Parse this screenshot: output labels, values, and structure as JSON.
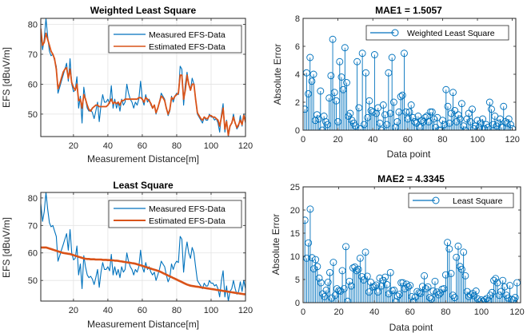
{
  "chart_data": [
    {
      "id": "wls_fit",
      "type": "line",
      "title": "Weighted Least Square",
      "xlabel": "Measurement Distance[m]",
      "ylabel": "EFS [dBuV/m]",
      "xlim": [
        1,
        120
      ],
      "ylim": [
        42.5,
        82
      ],
      "xticks": [
        20,
        40,
        60,
        80,
        100,
        120
      ],
      "yticks": [
        50,
        60,
        70,
        80
      ],
      "grid": true,
      "legend_position": "top-right",
      "series": [
        {
          "name": "Measured EFS-Data",
          "color": "#0072BD",
          "ref": "measured"
        },
        {
          "name": "Estimated EFS-Data",
          "color": "#D95319",
          "ref": "wls_estimate"
        }
      ]
    },
    {
      "id": "wls_err",
      "type": "stem",
      "title": "MAE1 = 1.5057",
      "xlabel": "Data point",
      "ylabel": "Absolute Error",
      "xlim": [
        0,
        122
      ],
      "ylim": [
        0,
        8
      ],
      "xticks": [
        0,
        20,
        40,
        60,
        80,
        100,
        120
      ],
      "yticks": [
        0,
        2,
        4,
        6,
        8
      ],
      "grid": false,
      "legend_position": "top-right",
      "series": [
        {
          "name": "Weighted Least Square",
          "color": "#0072BD",
          "ref": "wls_error"
        }
      ]
    },
    {
      "id": "ls_fit",
      "type": "line",
      "title": "Least Square",
      "xlabel": "Measurement Distance[m]",
      "ylabel": "EFS [dBuV/m]",
      "xlim": [
        1,
        120
      ],
      "ylim": [
        42.5,
        82
      ],
      "xticks": [
        20,
        40,
        60,
        80,
        100,
        120
      ],
      "yticks": [
        50,
        60,
        70,
        80
      ],
      "grid": true,
      "legend_position": "top-right",
      "series": [
        {
          "name": "Measured EFS-Data",
          "color": "#0072BD",
          "ref": "measured"
        },
        {
          "name": "Estimated EFS-Data",
          "color": "#D95319",
          "ref": "ls_estimate"
        }
      ]
    },
    {
      "id": "ls_err",
      "type": "stem",
      "title": "MAE2 = 4.3345",
      "xlabel": "Data point",
      "ylabel": "Absolute Error",
      "xlim": [
        0,
        122
      ],
      "ylim": [
        0,
        25
      ],
      "xticks": [
        0,
        20,
        40,
        60,
        80,
        100,
        120
      ],
      "yticks": [
        0,
        5,
        10,
        15,
        20,
        25
      ],
      "grid": false,
      "legend_position": "top-right",
      "series": [
        {
          "name": "Least Square",
          "color": "#0072BD",
          "ref": "ls_error"
        }
      ]
    }
  ],
  "series_values": {
    "x": [
      1,
      2,
      3,
      4,
      5,
      6,
      7,
      8,
      9,
      10,
      11,
      12,
      13,
      14,
      15,
      16,
      17,
      18,
      19,
      20,
      21,
      22,
      23,
      24,
      25,
      26,
      27,
      28,
      29,
      30,
      31,
      32,
      33,
      34,
      35,
      36,
      37,
      38,
      39,
      40,
      41,
      42,
      43,
      44,
      45,
      46,
      47,
      48,
      49,
      50,
      51,
      52,
      53,
      54,
      55,
      56,
      57,
      58,
      59,
      60,
      61,
      62,
      63,
      64,
      65,
      66,
      67,
      68,
      69,
      70,
      71,
      72,
      73,
      74,
      75,
      76,
      77,
      78,
      79,
      80,
      81,
      82,
      83,
      84,
      85,
      86,
      87,
      88,
      89,
      90,
      91,
      92,
      93,
      94,
      95,
      96,
      97,
      98,
      99,
      100,
      101,
      102,
      103,
      104,
      105,
      106,
      107,
      108,
      109,
      110,
      111,
      112,
      113,
      114,
      115,
      116,
      117,
      118,
      119,
      120
    ],
    "measured": [
      78,
      71.5,
      75,
      82,
      76,
      71,
      69.5,
      70,
      68,
      66,
      57,
      59,
      61,
      63,
      65,
      67,
      61,
      68.5,
      60,
      57.5,
      58,
      62.5,
      52,
      56,
      47,
      59,
      55,
      52,
      51,
      51.5,
      50.5,
      48.5,
      51,
      54,
      47.5,
      53,
      56.5,
      54,
      54,
      55,
      53.5,
      59.5,
      52,
      55,
      52,
      54,
      51,
      55,
      53,
      54,
      60,
      57,
      55,
      54,
      52,
      54,
      53,
      55,
      61,
      55,
      53,
      56.5,
      54,
      55,
      53,
      52,
      53,
      50,
      52,
      54,
      57,
      56,
      55,
      52,
      49.5,
      51,
      56,
      54,
      56,
      57,
      56.5,
      66,
      65,
      53,
      60,
      64,
      60,
      58,
      62,
      60,
      55,
      50,
      49,
      48,
      47,
      49,
      48,
      48,
      50,
      49,
      49,
      48,
      48.5,
      47,
      44,
      50,
      53.5,
      44,
      48,
      42.5,
      46,
      47,
      50,
      47,
      45,
      46,
      49.5,
      46,
      50,
      47
    ],
    "wls_estimate": [
      78.5,
      73,
      74,
      77,
      75,
      73,
      71,
      70,
      68.5,
      65,
      58.5,
      60,
      62,
      64,
      65,
      65.5,
      62,
      65,
      60.5,
      59,
      58,
      60,
      54.5,
      55,
      52,
      56.5,
      55,
      53,
      51.5,
      51,
      52,
      52.5,
      53,
      53,
      52.5,
      52.5,
      52.5,
      52.5,
      52.5,
      53,
      54,
      55,
      53.5,
      54,
      53.5,
      54,
      53,
      54.5,
      54.5,
      55,
      55,
      55,
      55,
      55,
      55,
      55,
      55,
      55.5,
      55.5,
      55,
      54,
      55.5,
      55,
      54.5,
      53.5,
      52,
      53,
      50.5,
      52,
      54,
      56,
      55.5,
      54.5,
      52,
      50,
      51.5,
      55.5,
      55,
      56,
      56.5,
      57,
      63,
      63,
      55,
      58,
      63,
      60,
      58,
      60,
      60,
      55,
      50.5,
      49.5,
      48.5,
      48,
      49,
      48.5,
      48.5,
      49.5,
      49.5,
      49,
      49,
      48.5,
      48,
      46,
      49,
      52,
      45,
      47.5,
      43,
      46,
      47,
      49,
      47,
      45.5,
      46.5,
      48,
      46.5,
      49.5,
      47.5
    ],
    "ls_estimate": [
      62,
      62,
      62,
      62,
      61.8,
      61.6,
      61.4,
      61.2,
      61,
      60.8,
      60.6,
      60.4,
      60.2,
      60,
      59.9,
      59.8,
      59.7,
      59.6,
      59.4,
      59.2,
      59,
      58.8,
      58.6,
      58.4,
      58.2,
      58,
      57.9,
      57.8,
      57.8,
      57.7,
      57.7,
      57.7,
      57.6,
      57.6,
      57.6,
      57.6,
      57.5,
      57.5,
      57.5,
      57.4,
      57.4,
      57.3,
      57.3,
      57.2,
      57.2,
      57.1,
      57,
      56.9,
      56.8,
      56.7,
      56.6,
      56.5,
      56.4,
      56.3,
      56.2,
      56.1,
      55.9,
      55.7,
      55.5,
      55.3,
      55.1,
      54.9,
      54.7,
      54.5,
      54.3,
      54.1,
      53.9,
      53.7,
      53.5,
      53.3,
      53,
      52.7,
      52.4,
      52.1,
      51.8,
      51.5,
      51.2,
      50.9,
      50.6,
      50.3,
      50,
      49.7,
      49.4,
      49.1,
      48.8,
      48.5,
      48.3,
      48.1,
      48,
      47.9,
      47.8,
      47.7,
      47.6,
      47.5,
      47.4,
      47.3,
      47.2,
      47.1,
      47,
      46.9,
      46.8,
      46.7,
      46.6,
      46.5,
      46.4,
      46.3,
      46.2,
      46.1,
      46,
      45.9,
      45.8,
      45.7,
      45.6,
      45.5,
      45.4,
      45.3,
      45.2,
      45.1,
      45,
      45
    ],
    "wls_error": [
      1.5,
      4.1,
      2.6,
      5.2,
      3.5,
      4.0,
      0.7,
      1.1,
      0.8,
      2.8,
      0.0,
      1.0,
      0.6,
      0.4,
      2.3,
      3.9,
      6.5,
      2.7,
      2.1,
      0.6,
      4.9,
      3.8,
      2.9,
      5.9,
      3.4,
      1.0,
      1.2,
      0.7,
      0.5,
      0.3,
      4.9,
      1.6,
      0.1,
      5.5,
      0.4,
      4.1,
      0.9,
      2.1,
      1.4,
      1.3,
      5.4,
      1.2,
      1.6,
      0.5,
      0.0,
      1.8,
      1.1,
      0.4,
      4.1,
      1.2,
      5.2,
      2.0,
      0.2,
      0.6,
      1.3,
      2.4,
      2.5,
      5.5,
      1.3,
      0.8,
      1.3,
      1.8,
      0.9,
      0.6,
      0.5,
      1.0,
      0.2,
      0.7,
      0.6,
      0.9,
      1.0,
      0.6,
      1.3,
      1.3,
      0.8,
      0.2,
      0.9,
      0.0,
      0.0,
      0.7,
      0.4,
      2.9,
      1.7,
      0.5,
      1.2,
      2.7,
      1.4,
      0.6,
      1.1,
      0.8,
      1.9,
      0.3,
      0.0,
      0.8,
      1.2,
      0.6,
      1.5,
      0.1,
      0.3,
      0.7,
      0.2,
      0.5,
      0.8,
      0.1,
      0.4,
      0.2,
      2.0,
      1.5,
      0.4,
      1.0,
      0.3,
      0.5,
      0.8,
      0.2,
      1.7,
      0.6,
      0.5,
      0.8,
      0.4,
      0.1
    ],
    "ls_error": [
      17.8,
      9.6,
      12.9,
      20.2,
      9.7,
      7.3,
      9.3,
      7.8,
      5.3,
      4.3,
      1.9,
      1.3,
      2.7,
      4.4,
      6.5,
      1.0,
      8.7,
      1.6,
      3.0,
      2.6,
      2.5,
      6.9,
      3.0,
      12.1,
      0.3,
      4.6,
      3.6,
      7.5,
      7.7,
      6.9,
      7.2,
      9.6,
      5.6,
      4.9,
      10.9,
      5.7,
      2.3,
      4.4,
      3.4,
      3.5,
      3.8,
      2.3,
      5.3,
      3.6,
      4.8,
      5.5,
      3.9,
      1.9,
      6.5,
      2.6,
      2.7,
      0.2,
      1.4,
      1.8,
      4.3,
      4.3,
      3.0,
      4.0,
      3.4,
      3.7,
      1.3,
      0.3,
      1.2,
      2.4,
      2.1,
      2.0,
      3.5,
      5.8,
      3.0,
      3.4,
      1.1,
      0.8,
      2.5,
      4.6,
      2.3,
      1.7,
      2.1,
      2.9,
      3.0,
      6.0,
      13.0,
      11.6,
      6.3,
      1.6,
      1.1,
      9.8,
      12.2,
      7.8,
      7.2,
      10.9,
      5.8,
      2.4,
      1.3,
      1.7,
      2.0,
      1.5,
      2.5,
      0.8,
      0.2,
      0.6,
      0.3,
      0.6,
      0.9,
      0.4,
      1.6,
      2.2,
      4.8,
      5.2,
      4.3,
      1.6,
      2.4,
      4.8,
      3.4,
      1.6,
      1.0,
      3.7,
      0.7,
      0.6,
      1.1,
      4.3
    ]
  }
}
